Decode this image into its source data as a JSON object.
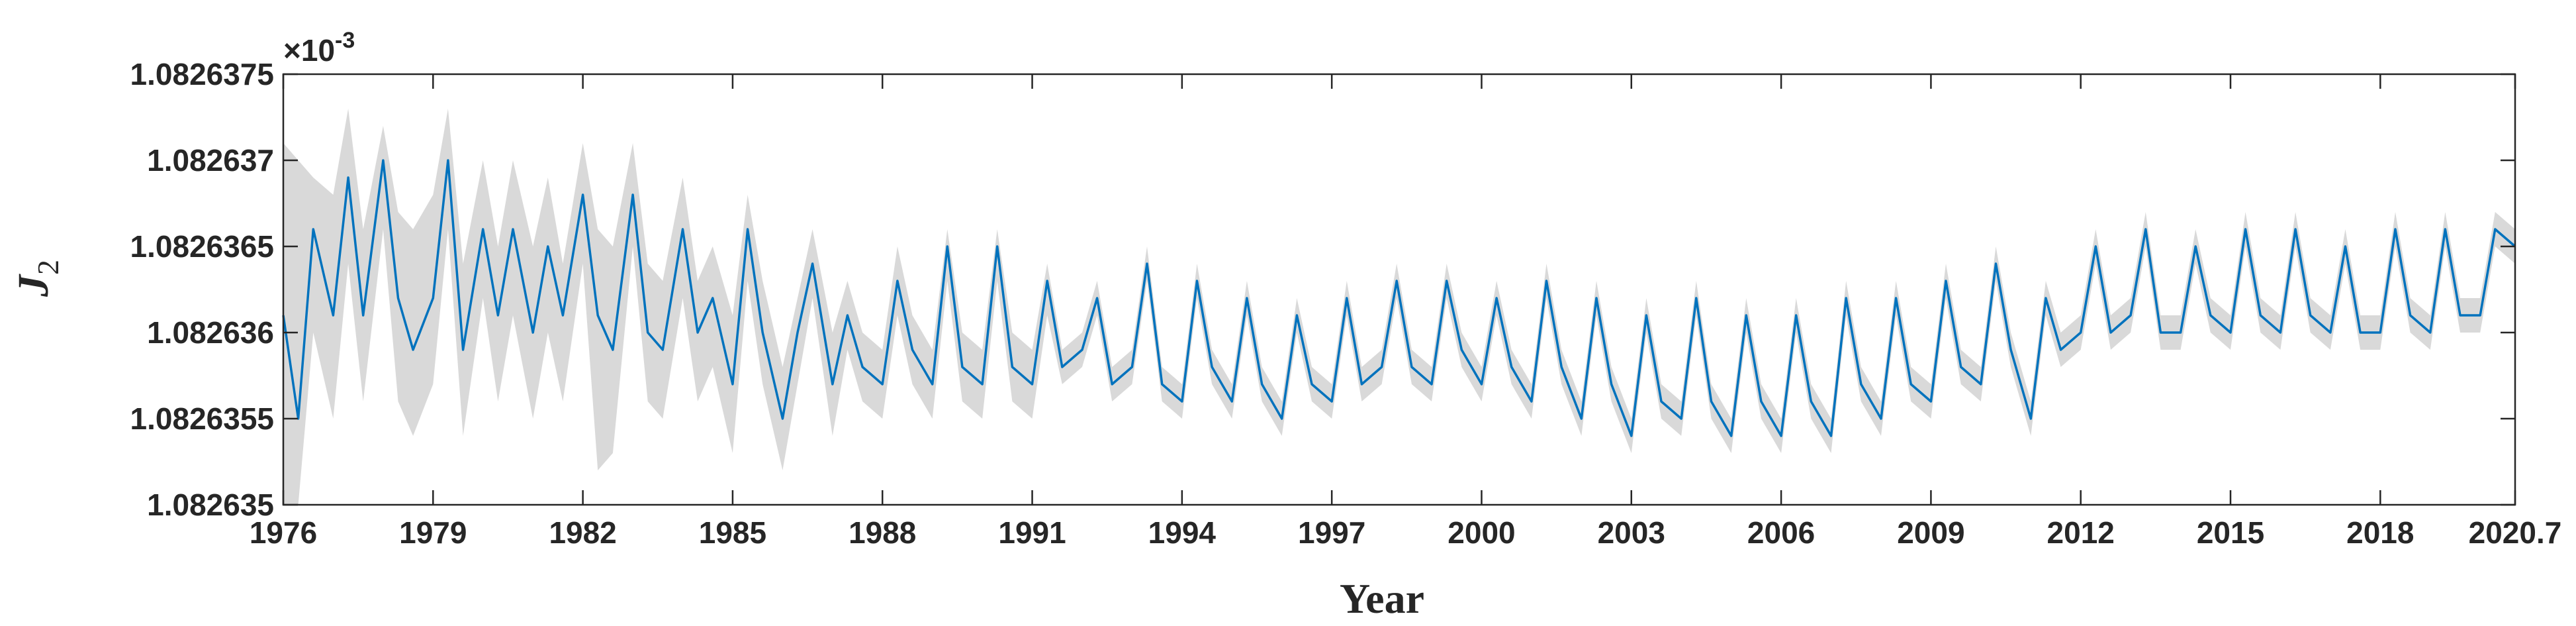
{
  "chart_data": {
    "type": "line",
    "title": "",
    "xlabel": "Year",
    "ylabel": "J",
    "ylabel_subscript": "2",
    "y_exponent_label": {
      "prefix": "×10",
      "exponent": "-3"
    },
    "xlim": [
      1976,
      2020.7
    ],
    "ylim": [
      1.082635,
      1.0826375
    ],
    "x_ticks": [
      1976,
      1979,
      1982,
      1985,
      1988,
      1991,
      1994,
      1997,
      2000,
      2003,
      2006,
      2009,
      2012,
      2015,
      2018,
      2020.7
    ],
    "x_tick_labels": [
      "1976",
      "1979",
      "1982",
      "1985",
      "1988",
      "1991",
      "1994",
      "1997",
      "2000",
      "2003",
      "2006",
      "2009",
      "2012",
      "2015",
      "2018",
      "2020.7"
    ],
    "y_ticks": [
      1.082635,
      1.0826355,
      1.082636,
      1.0826365,
      1.082637,
      1.0826375
    ],
    "y_tick_labels": [
      "1.082635",
      "1.0826355",
      "1.082636",
      "1.0826365",
      "1.082637",
      "1.0826375"
    ],
    "grid": false,
    "series": [
      {
        "color": "#0072BD",
        "x": [
          1976.0,
          1976.3,
          1976.6,
          1977.0,
          1977.3,
          1977.6,
          1978.0,
          1978.3,
          1978.6,
          1979.0,
          1979.3,
          1979.6,
          1980.0,
          1980.3,
          1980.6,
          1981.0,
          1981.3,
          1981.6,
          1982.0,
          1982.3,
          1982.6,
          1983.0,
          1983.3,
          1983.6,
          1984.0,
          1984.3,
          1984.6,
          1985.0,
          1985.3,
          1985.6,
          1986.0,
          1986.3,
          1986.6,
          1987.0,
          1987.3,
          1987.6,
          1988.0,
          1988.3,
          1988.6,
          1989.0,
          1989.3,
          1989.6,
          1990.0,
          1990.3,
          1990.6,
          1991.0,
          1991.3,
          1991.6,
          1992.0,
          1992.3,
          1992.6,
          1993.0,
          1993.3,
          1993.6,
          1994.0,
          1994.3,
          1994.6,
          1995.0,
          1995.3,
          1995.6,
          1996.0,
          1996.3,
          1996.6,
          1997.0,
          1997.3,
          1997.6,
          1998.0,
          1998.3,
          1998.6,
          1999.0,
          1999.3,
          1999.6,
          2000.0,
          2000.3,
          2000.6,
          2001.0,
          2001.3,
          2001.6,
          2002.0,
          2002.3,
          2002.6,
          2003.0,
          2003.3,
          2003.6,
          2004.0,
          2004.3,
          2004.6,
          2005.0,
          2005.3,
          2005.6,
          2006.0,
          2006.3,
          2006.6,
          2007.0,
          2007.3,
          2007.6,
          2008.0,
          2008.3,
          2008.6,
          2009.0,
          2009.3,
          2009.6,
          2010.0,
          2010.3,
          2010.6,
          2011.0,
          2011.3,
          2011.6,
          2012.0,
          2012.3,
          2012.6,
          2013.0,
          2013.3,
          2013.6,
          2014.0,
          2014.3,
          2014.6,
          2015.0,
          2015.3,
          2015.6,
          2016.0,
          2016.3,
          2016.6,
          2017.0,
          2017.3,
          2017.6,
          2018.0,
          2018.3,
          2018.6,
          2019.0,
          2019.3,
          2019.6,
          2020.0,
          2020.3,
          2020.7
        ],
        "y": [
          1.0826361,
          1.0826355,
          1.0826366,
          1.0826361,
          1.0826369,
          1.0826361,
          1.082637,
          1.0826362,
          1.0826359,
          1.0826362,
          1.082637,
          1.0826359,
          1.0826366,
          1.0826361,
          1.0826366,
          1.082636,
          1.0826365,
          1.0826361,
          1.0826368,
          1.0826361,
          1.0826359,
          1.0826368,
          1.082636,
          1.0826359,
          1.0826366,
          1.082636,
          1.0826362,
          1.0826357,
          1.0826366,
          1.082636,
          1.0826355,
          1.082636,
          1.0826364,
          1.0826357,
          1.0826361,
          1.0826358,
          1.0826357,
          1.0826363,
          1.0826359,
          1.0826357,
          1.0826365,
          1.0826358,
          1.0826357,
          1.0826365,
          1.0826358,
          1.0826357,
          1.0826363,
          1.0826358,
          1.0826359,
          1.0826362,
          1.0826357,
          1.0826358,
          1.0826364,
          1.0826357,
          1.0826356,
          1.0826363,
          1.0826358,
          1.0826356,
          1.0826362,
          1.0826357,
          1.0826355,
          1.0826361,
          1.0826357,
          1.0826356,
          1.0826362,
          1.0826357,
          1.0826358,
          1.0826363,
          1.0826358,
          1.0826357,
          1.0826363,
          1.0826359,
          1.0826357,
          1.0826362,
          1.0826358,
          1.0826356,
          1.0826363,
          1.0826358,
          1.0826355,
          1.0826362,
          1.0826357,
          1.0826354,
          1.0826361,
          1.0826356,
          1.0826355,
          1.0826362,
          1.0826356,
          1.0826354,
          1.0826361,
          1.0826356,
          1.0826354,
          1.0826361,
          1.0826356,
          1.0826354,
          1.0826362,
          1.0826357,
          1.0826355,
          1.0826362,
          1.0826357,
          1.0826356,
          1.0826363,
          1.0826358,
          1.0826357,
          1.0826364,
          1.0826359,
          1.0826355,
          1.0826362,
          1.0826359,
          1.082636,
          1.0826365,
          1.082636,
          1.0826361,
          1.0826366,
          1.082636,
          1.082636,
          1.0826365,
          1.0826361,
          1.082636,
          1.0826366,
          1.0826361,
          1.082636,
          1.0826366,
          1.0826361,
          1.082636,
          1.0826365,
          1.082636,
          1.082636,
          1.0826366,
          1.0826361,
          1.082636,
          1.0826366,
          1.0826361,
          1.0826361,
          1.0826366,
          1.0826365
        ]
      }
    ],
    "band": {
      "color": "#d9d9d9",
      "description": "uncertainty band",
      "upper": [
        1.0826371,
        1.082637,
        1.0826369,
        1.0826368,
        1.0826373,
        1.0826366,
        1.0826372,
        1.0826367,
        1.0826366,
        1.0826368,
        1.0826373,
        1.0826364,
        1.082637,
        1.0826365,
        1.082637,
        1.0826365,
        1.0826369,
        1.0826364,
        1.0826371,
        1.0826366,
        1.0826365,
        1.0826371,
        1.0826364,
        1.0826363,
        1.0826369,
        1.0826363,
        1.0826365,
        1.0826361,
        1.0826368,
        1.0826363,
        1.0826358,
        1.0826362,
        1.0826366,
        1.082636,
        1.0826363,
        1.082636,
        1.0826359,
        1.0826365,
        1.0826361,
        1.0826359,
        1.0826366,
        1.082636,
        1.0826359,
        1.0826366,
        1.082636,
        1.0826359,
        1.0826364,
        1.0826359,
        1.082636,
        1.0826363,
        1.0826358,
        1.0826359,
        1.0826365,
        1.0826358,
        1.0826357,
        1.0826364,
        1.0826359,
        1.0826357,
        1.0826363,
        1.0826358,
        1.0826356,
        1.0826362,
        1.0826358,
        1.0826357,
        1.0826363,
        1.0826358,
        1.0826359,
        1.0826364,
        1.0826359,
        1.0826358,
        1.0826364,
        1.082636,
        1.0826358,
        1.0826363,
        1.0826359,
        1.0826357,
        1.0826364,
        1.0826359,
        1.0826356,
        1.0826363,
        1.0826358,
        1.0826355,
        1.0826362,
        1.0826357,
        1.0826356,
        1.0826363,
        1.0826357,
        1.0826355,
        1.0826362,
        1.0826357,
        1.0826355,
        1.0826362,
        1.0826357,
        1.0826355,
        1.0826363,
        1.0826358,
        1.0826356,
        1.0826363,
        1.0826358,
        1.0826357,
        1.0826364,
        1.0826359,
        1.0826358,
        1.0826365,
        1.082636,
        1.0826356,
        1.0826363,
        1.082636,
        1.0826361,
        1.0826366,
        1.0826361,
        1.0826362,
        1.0826367,
        1.0826361,
        1.0826361,
        1.0826366,
        1.0826362,
        1.0826361,
        1.0826367,
        1.0826362,
        1.0826361,
        1.0826367,
        1.0826362,
        1.0826361,
        1.0826366,
        1.0826361,
        1.0826361,
        1.0826367,
        1.0826362,
        1.0826361,
        1.0826367,
        1.0826362,
        1.0826362,
        1.0826367,
        1.0826366
      ],
      "lower": [
        1.082635,
        1.082635,
        1.082636,
        1.0826355,
        1.0826364,
        1.0826356,
        1.0826366,
        1.0826356,
        1.0826354,
        1.0826357,
        1.0826366,
        1.0826354,
        1.0826362,
        1.0826356,
        1.0826361,
        1.0826355,
        1.082636,
        1.0826356,
        1.0826364,
        1.0826352,
        1.0826353,
        1.0826365,
        1.0826356,
        1.0826355,
        1.0826362,
        1.0826356,
        1.0826358,
        1.0826353,
        1.0826363,
        1.0826357,
        1.0826352,
        1.0826357,
        1.0826362,
        1.0826354,
        1.0826359,
        1.0826356,
        1.0826355,
        1.0826361,
        1.0826357,
        1.0826355,
        1.0826363,
        1.0826356,
        1.0826355,
        1.0826363,
        1.0826356,
        1.0826355,
        1.0826361,
        1.0826357,
        1.0826358,
        1.0826361,
        1.0826356,
        1.0826357,
        1.0826363,
        1.0826356,
        1.0826355,
        1.0826362,
        1.0826357,
        1.0826355,
        1.0826361,
        1.0826356,
        1.0826354,
        1.082636,
        1.0826356,
        1.0826355,
        1.0826361,
        1.0826356,
        1.0826357,
        1.0826362,
        1.0826357,
        1.0826356,
        1.0826362,
        1.0826358,
        1.0826356,
        1.0826361,
        1.0826357,
        1.0826355,
        1.0826362,
        1.0826357,
        1.0826354,
        1.0826361,
        1.0826356,
        1.0826353,
        1.082636,
        1.0826355,
        1.0826354,
        1.0826361,
        1.0826355,
        1.0826353,
        1.082636,
        1.0826355,
        1.0826353,
        1.082636,
        1.0826355,
        1.0826353,
        1.0826361,
        1.0826356,
        1.0826354,
        1.0826361,
        1.0826356,
        1.0826355,
        1.0826362,
        1.0826357,
        1.0826356,
        1.0826363,
        1.0826358,
        1.0826354,
        1.0826361,
        1.0826358,
        1.0826359,
        1.0826364,
        1.0826359,
        1.082636,
        1.0826365,
        1.0826359,
        1.0826359,
        1.0826364,
        1.082636,
        1.0826359,
        1.0826365,
        1.082636,
        1.0826359,
        1.0826365,
        1.082636,
        1.0826359,
        1.0826364,
        1.0826359,
        1.0826359,
        1.0826365,
        1.082636,
        1.0826359,
        1.0826365,
        1.082636,
        1.082636,
        1.0826365,
        1.0826364
      ]
    }
  }
}
